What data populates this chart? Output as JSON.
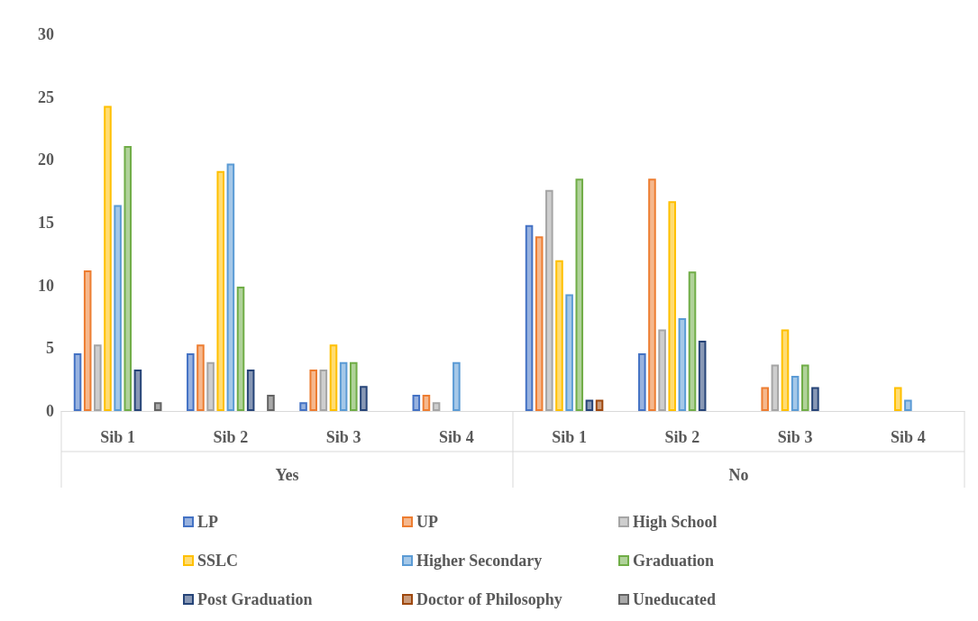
{
  "chart_data": {
    "type": "bar",
    "categories": [
      "Sib 1",
      "Sib 2",
      "Sib 3",
      "Sib 4",
      "Sib 1",
      "Sib 2",
      "Sib 3",
      "Sib 4"
    ],
    "annotations": [
      "Yes",
      "No"
    ],
    "ylim": [
      0,
      30
    ],
    "yticks": [
      0,
      5,
      10,
      15,
      20,
      25,
      30
    ],
    "grid": false,
    "legend": "bottom",
    "series": [
      {
        "name": "LP",
        "color": "#4472c4",
        "values": [
          4.6,
          4.6,
          0.7,
          1.3,
          14.8,
          4.6,
          null,
          null
        ]
      },
      {
        "name": "UP",
        "color": "#ed7d31",
        "values": [
          11.2,
          5.3,
          3.3,
          1.3,
          13.9,
          18.5,
          1.9,
          null
        ]
      },
      {
        "name": "High School",
        "color": "#a5a5a5",
        "values": [
          5.3,
          3.9,
          3.3,
          0.7,
          17.6,
          6.5,
          3.7,
          null
        ]
      },
      {
        "name": "SSLC",
        "color": "#ffc000",
        "values": [
          24.3,
          19.1,
          5.3,
          null,
          12.0,
          16.7,
          6.5,
          1.9
        ]
      },
      {
        "name": "Higher Secondary",
        "color": "#5b9bd5",
        "values": [
          16.4,
          19.7,
          3.9,
          3.9,
          9.3,
          7.4,
          2.8,
          0.9
        ]
      },
      {
        "name": "Graduation",
        "color": "#70ad47",
        "values": [
          21.1,
          9.9,
          3.9,
          null,
          18.5,
          11.1,
          3.7,
          null
        ]
      },
      {
        "name": "Post Graduation",
        "color": "#264478",
        "values": [
          3.3,
          3.3,
          2.0,
          null,
          0.9,
          5.6,
          1.9,
          null
        ]
      },
      {
        "name": "Doctor of Philosophy",
        "color": "#9e480e",
        "values": [
          null,
          null,
          null,
          null,
          0.9,
          null,
          null,
          null
        ]
      },
      {
        "name": "Uneducated",
        "color": "#636363",
        "values": [
          0.7,
          1.3,
          null,
          null,
          null,
          null,
          null,
          null
        ]
      }
    ]
  }
}
